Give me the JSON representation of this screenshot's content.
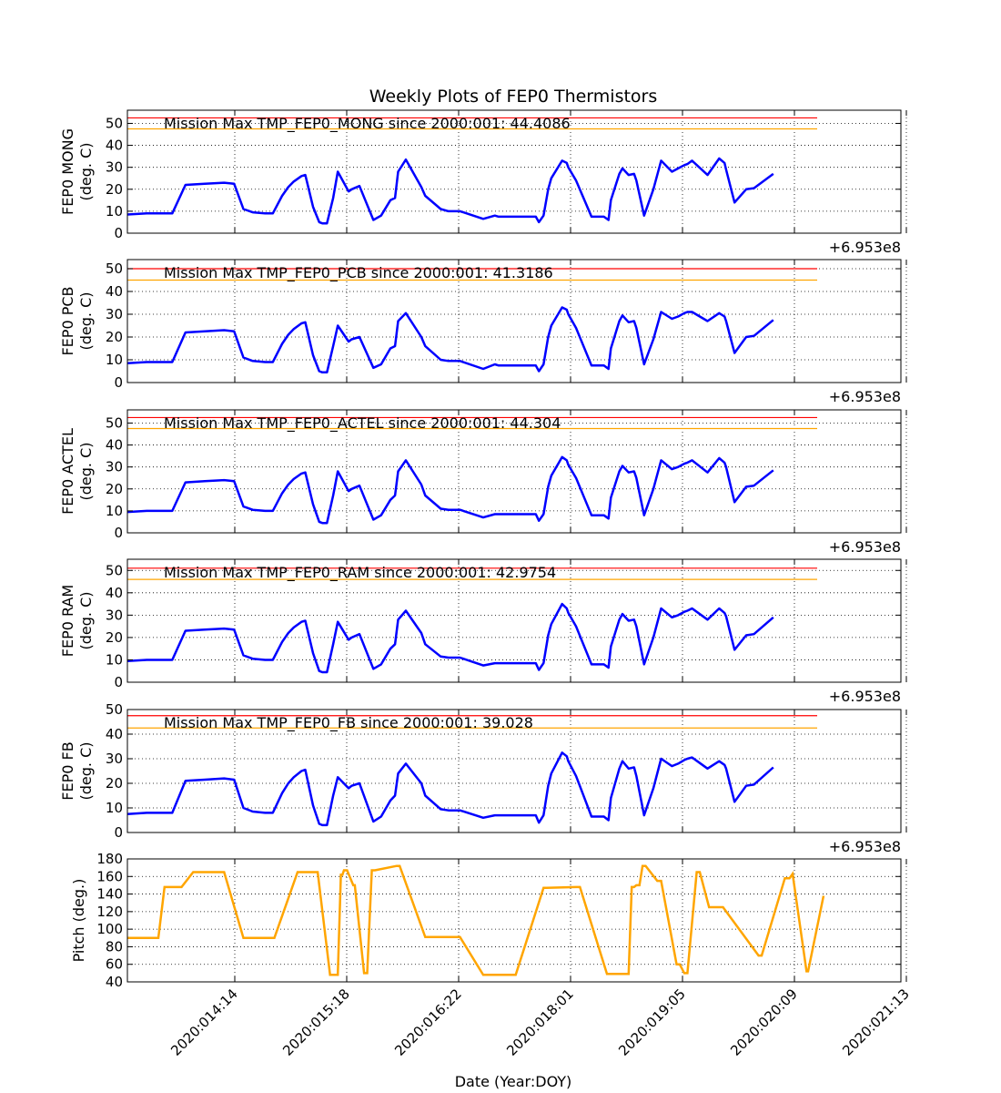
{
  "chart_data": {
    "type": "line",
    "title": "Weekly Plots of FEP0 Thermistors",
    "xlabel": "Date (Year:DOY)",
    "x_tick_labels": [
      "2020:014:14",
      "2020:015:18",
      "2020:016:22",
      "2020:018:01",
      "2020:019:05",
      "2020:020:09",
      "2020:021:13"
    ],
    "grid": true,
    "offset_label": "+6.953e8",
    "colors": {
      "series": "#0000ff",
      "pitch": "#ffa500",
      "red_limit": "#ff0000",
      "yellow_limit": "#ffa500"
    },
    "panels": [
      {
        "ylabel_line1": "FEP0 MONG",
        "ylabel_line2": "(deg. C)",
        "ylim": [
          0,
          56
        ],
        "yticks": [
          0,
          10,
          20,
          30,
          40,
          50
        ],
        "annotation": "Mission Max TMP_FEP0_MONG since 2000:001: 44.4086",
        "red_limit": 52.5,
        "yellow_limit": 47.5,
        "x": [
          0,
          0.25,
          0.5,
          0.58,
          0.75,
          1.0,
          1.25,
          1.38,
          1.5,
          1.62,
          1.78,
          1.88,
          2.0,
          2.08,
          2.15,
          2.25,
          2.3,
          2.4,
          2.48,
          2.52,
          2.58,
          2.66,
          2.72,
          2.86,
          2.9,
          3.0,
          3.18,
          3.28,
          3.4,
          3.46,
          3.5,
          3.6,
          3.8,
          3.85,
          4.05,
          4.15,
          4.2,
          4.3,
          4.6,
          4.75,
          4.8,
          4.95,
          5.1,
          5.2,
          5.28,
          5.32,
          5.38,
          5.44,
          5.48,
          5.62,
          5.68,
          5.7,
          5.8,
          6.0,
          6.07,
          6.1,
          6.16,
          6.22,
          6.25,
          6.36,
          6.4,
          6.48,
          6.55,
          6.58,
          6.68,
          6.8,
          6.9,
          7.04,
          7.12,
          7.2,
          7.24,
          7.3,
          7.5,
          7.65,
          7.72,
          7.74,
          7.85,
          8.0,
          8.1,
          8.35
        ],
        "y": [
          8.5,
          9,
          9,
          9,
          22,
          22.5,
          23,
          22.5,
          11,
          9.5,
          9,
          9,
          17,
          21,
          23.5,
          26,
          26.5,
          12,
          5,
          4.5,
          4.5,
          16,
          28,
          19,
          20,
          21.5,
          6,
          8,
          15,
          16,
          28,
          33.5,
          21,
          17,
          11,
          10,
          10,
          10,
          6.5,
          8,
          7.5,
          7.5,
          7.5,
          7.5,
          7.5,
          5,
          8,
          20,
          25,
          33,
          32,
          30,
          24,
          7.5,
          7.5,
          7.5,
          7.5,
          6,
          15,
          27,
          29.5,
          26.5,
          27,
          24,
          8,
          20,
          33,
          28,
          29.5,
          31,
          31.5,
          33,
          26.5,
          34,
          32,
          29,
          14,
          20,
          20.5,
          27
        ]
      },
      {
        "ylabel_line1": "FEP0 PCB",
        "ylabel_line2": "(deg. C)",
        "ylim": [
          0,
          54
        ],
        "yticks": [
          0,
          10,
          20,
          30,
          40,
          50
        ],
        "annotation": "Mission Max TMP_FEP0_PCB since 2000:001: 41.3186",
        "red_limit": 50,
        "yellow_limit": 45,
        "x": [
          0,
          0.25,
          0.5,
          0.58,
          0.75,
          1.0,
          1.25,
          1.38,
          1.5,
          1.62,
          1.78,
          1.88,
          2.0,
          2.08,
          2.15,
          2.25,
          2.3,
          2.4,
          2.48,
          2.52,
          2.58,
          2.66,
          2.72,
          2.86,
          2.9,
          3.0,
          3.18,
          3.28,
          3.4,
          3.46,
          3.5,
          3.6,
          3.8,
          3.85,
          4.05,
          4.15,
          4.2,
          4.3,
          4.6,
          4.75,
          4.8,
          4.95,
          5.1,
          5.2,
          5.28,
          5.32,
          5.38,
          5.44,
          5.48,
          5.62,
          5.68,
          5.7,
          5.8,
          6.0,
          6.07,
          6.1,
          6.16,
          6.22,
          6.25,
          6.36,
          6.4,
          6.48,
          6.55,
          6.58,
          6.68,
          6.8,
          6.9,
          7.04,
          7.12,
          7.2,
          7.24,
          7.3,
          7.5,
          7.65,
          7.72,
          7.74,
          7.85,
          8.0,
          8.1,
          8.35
        ],
        "y": [
          8.5,
          9,
          9,
          9,
          22,
          22.5,
          23,
          22.5,
          11,
          9.5,
          9,
          9,
          17,
          21,
          23.5,
          26,
          26.5,
          12,
          5,
          4.5,
          4.5,
          16,
          25,
          18,
          19,
          20,
          6.5,
          8,
          15,
          16,
          27,
          30.5,
          20,
          16,
          10,
          9.5,
          9.5,
          9.5,
          6,
          8,
          7.5,
          7.5,
          7.5,
          7.5,
          7.5,
          5,
          8,
          20,
          25,
          33,
          32,
          30,
          24,
          7.5,
          7.5,
          7.5,
          7.5,
          6,
          15,
          27,
          29.5,
          26.5,
          27,
          24,
          8,
          19,
          31,
          28,
          29,
          30.5,
          31,
          31,
          27,
          30.5,
          29,
          27,
          13,
          20,
          20.5,
          27.5
        ]
      },
      {
        "ylabel_line1": "FEP0 ACTEL",
        "ylabel_line2": "(deg. C)",
        "ylim": [
          0,
          56
        ],
        "yticks": [
          0,
          10,
          20,
          30,
          40,
          50
        ],
        "annotation": "Mission Max TMP_FEP0_ACTEL since 2000:001: 44.304",
        "red_limit": 52.5,
        "yellow_limit": 47.5,
        "x": [
          0,
          0.25,
          0.5,
          0.58,
          0.75,
          1.0,
          1.25,
          1.38,
          1.5,
          1.62,
          1.78,
          1.88,
          2.0,
          2.08,
          2.15,
          2.25,
          2.3,
          2.4,
          2.48,
          2.52,
          2.58,
          2.66,
          2.72,
          2.86,
          2.9,
          3.0,
          3.18,
          3.28,
          3.4,
          3.46,
          3.5,
          3.6,
          3.8,
          3.85,
          4.05,
          4.15,
          4.2,
          4.3,
          4.6,
          4.75,
          4.8,
          4.95,
          5.1,
          5.2,
          5.28,
          5.32,
          5.38,
          5.44,
          5.48,
          5.62,
          5.68,
          5.7,
          5.8,
          6.0,
          6.07,
          6.1,
          6.16,
          6.22,
          6.25,
          6.36,
          6.4,
          6.48,
          6.55,
          6.58,
          6.68,
          6.8,
          6.9,
          7.04,
          7.12,
          7.2,
          7.24,
          7.3,
          7.5,
          7.65,
          7.72,
          7.74,
          7.85,
          8.0,
          8.1,
          8.35
        ],
        "y": [
          9.5,
          10,
          10,
          10,
          23,
          23.5,
          24,
          23.5,
          12,
          10.5,
          10,
          10,
          18,
          22,
          24.5,
          27,
          27.5,
          13,
          5,
          4.5,
          4.5,
          17,
          28,
          19,
          20,
          21.5,
          6,
          8,
          15,
          17,
          28,
          33,
          22,
          17,
          11,
          10.5,
          10.5,
          10.5,
          7,
          8.5,
          8.5,
          8.5,
          8.5,
          8.5,
          8.5,
          5.5,
          8.5,
          21,
          26,
          34.5,
          33,
          31,
          25,
          8,
          8,
          8,
          8,
          6.5,
          16,
          28,
          30.5,
          27.5,
          28,
          25,
          8,
          20,
          33,
          29,
          30,
          31.5,
          32,
          33,
          27.5,
          34,
          32,
          30,
          14,
          21,
          21.5,
          28.5
        ]
      },
      {
        "ylabel_line1": "FEP0 RAM",
        "ylabel_line2": "(deg. C)",
        "ylim": [
          0,
          55
        ],
        "yticks": [
          0,
          10,
          20,
          30,
          40,
          50
        ],
        "annotation": "Mission Max TMP_FEP0_RAM since 2000:001: 42.9754",
        "red_limit": 51,
        "yellow_limit": 46,
        "x": [
          0,
          0.25,
          0.5,
          0.58,
          0.75,
          1.0,
          1.25,
          1.38,
          1.5,
          1.62,
          1.78,
          1.88,
          2.0,
          2.08,
          2.15,
          2.25,
          2.3,
          2.4,
          2.48,
          2.52,
          2.58,
          2.66,
          2.72,
          2.86,
          2.9,
          3.0,
          3.18,
          3.28,
          3.4,
          3.46,
          3.5,
          3.6,
          3.8,
          3.85,
          4.05,
          4.15,
          4.2,
          4.3,
          4.6,
          4.75,
          4.8,
          4.95,
          5.1,
          5.2,
          5.28,
          5.32,
          5.38,
          5.44,
          5.48,
          5.62,
          5.68,
          5.7,
          5.8,
          6.0,
          6.07,
          6.1,
          6.16,
          6.22,
          6.25,
          6.36,
          6.4,
          6.48,
          6.55,
          6.58,
          6.68,
          6.8,
          6.9,
          7.04,
          7.12,
          7.2,
          7.24,
          7.3,
          7.5,
          7.65,
          7.72,
          7.74,
          7.85,
          8.0,
          8.1,
          8.35
        ],
        "y": [
          9.5,
          10,
          10,
          10,
          23,
          23.5,
          24,
          23.5,
          12,
          10.5,
          10,
          10,
          18,
          22,
          24.5,
          27,
          27.5,
          13,
          5,
          4.5,
          4.5,
          17,
          27,
          19,
          20,
          21.5,
          6,
          8,
          15,
          17,
          28,
          32,
          22,
          17,
          11.5,
          11,
          11,
          11,
          7.5,
          8.5,
          8.5,
          8.5,
          8.5,
          8.5,
          8.5,
          5.5,
          8.5,
          21,
          26,
          35,
          33,
          31,
          25,
          8,
          8,
          8,
          8,
          6.5,
          16,
          28,
          30.5,
          27.5,
          28,
          25,
          8,
          20,
          33,
          29,
          30,
          31.5,
          32,
          33,
          28,
          33,
          31,
          29.5,
          14.5,
          21,
          21.5,
          29
        ]
      },
      {
        "ylabel_line1": "FEP0 FB",
        "ylabel_line2": "(deg. C)",
        "ylim": [
          0,
          50
        ],
        "yticks": [
          0,
          10,
          20,
          30,
          40,
          50
        ],
        "annotation": "Mission Max TMP_FEP0_FB since 2000:001: 39.028",
        "red_limit": 47.5,
        "yellow_limit": 42.5,
        "x": [
          0,
          0.25,
          0.5,
          0.58,
          0.75,
          1.0,
          1.25,
          1.38,
          1.5,
          1.62,
          1.78,
          1.88,
          2.0,
          2.08,
          2.15,
          2.25,
          2.3,
          2.4,
          2.48,
          2.52,
          2.58,
          2.66,
          2.72,
          2.86,
          2.9,
          3.0,
          3.18,
          3.28,
          3.4,
          3.46,
          3.5,
          3.6,
          3.8,
          3.85,
          4.05,
          4.15,
          4.2,
          4.3,
          4.6,
          4.75,
          4.8,
          4.95,
          5.1,
          5.2,
          5.28,
          5.32,
          5.38,
          5.44,
          5.48,
          5.62,
          5.68,
          5.7,
          5.8,
          6.0,
          6.07,
          6.1,
          6.16,
          6.22,
          6.25,
          6.36,
          6.4,
          6.48,
          6.55,
          6.58,
          6.68,
          6.8,
          6.9,
          7.04,
          7.12,
          7.2,
          7.24,
          7.3,
          7.5,
          7.65,
          7.72,
          7.74,
          7.85,
          8.0,
          8.1,
          8.35
        ],
        "y": [
          7.5,
          8,
          8,
          8,
          21,
          21.5,
          22,
          21.5,
          10,
          8.5,
          8,
          8,
          16,
          20,
          22.5,
          25,
          25.5,
          11,
          3.5,
          3,
          3,
          15,
          22.5,
          18,
          19,
          20,
          4.5,
          6.5,
          13,
          15,
          24,
          28,
          20,
          15,
          9.5,
          9,
          9,
          9,
          6,
          7,
          7,
          7,
          7,
          7,
          7,
          4,
          7,
          19,
          24,
          32.5,
          31,
          29,
          23,
          6.5,
          6.5,
          6.5,
          6.5,
          5,
          14,
          26,
          29,
          26,
          26.5,
          23,
          7,
          18,
          30,
          27,
          28,
          29.5,
          30,
          30.5,
          26,
          29,
          27.5,
          26,
          12.5,
          19,
          19.5,
          26.5
        ]
      },
      {
        "ylabel_line1": "Pitch (deg.)",
        "ylabel_line2": "",
        "ylim": [
          40,
          180
        ],
        "yticks": [
          40,
          60,
          80,
          100,
          120,
          140,
          160,
          180
        ],
        "annotation": "",
        "step": true,
        "x": [
          0,
          0.35,
          0.4,
          0.48,
          0.5,
          0.66,
          0.7,
          0.85,
          0.88,
          1.2,
          1.25,
          1.5,
          1.54,
          1.85,
          1.9,
          2.2,
          2.25,
          2.42,
          2.46,
          2.62,
          2.64,
          2.68,
          2.72,
          2.76,
          2.78,
          2.8,
          2.84,
          2.92,
          2.94,
          3.06,
          3.1,
          3.16,
          3.2,
          3.48,
          3.52,
          3.85,
          3.9,
          4.25,
          4.3,
          4.6,
          4.65,
          4.98,
          5.02,
          5.38,
          5.42,
          5.8,
          5.85,
          6.2,
          6.24,
          6.45,
          6.48,
          6.52,
          6.55,
          6.58,
          6.62,
          6.66,
          6.7,
          6.85,
          6.9,
          7.1,
          7.14,
          7.2,
          7.24,
          7.36,
          7.4,
          7.52,
          7.56,
          7.62,
          7.66,
          7.7,
          8.16,
          8.2,
          8.5,
          8.56,
          8.6,
          8.78,
          8.8,
          9.0
        ],
        "y": [
          90,
          90,
          90,
          148,
          148,
          148,
          148,
          165,
          165,
          165,
          165,
          90,
          90,
          90,
          90,
          165,
          165,
          165,
          165,
          48,
          48,
          48,
          48,
          162,
          162,
          167,
          167,
          150,
          150,
          50,
          50,
          167,
          167,
          172,
          172,
          91,
          91,
          91,
          91,
          48,
          48,
          48,
          48,
          147,
          147,
          148,
          148,
          49,
          49,
          49,
          49,
          148,
          148,
          150,
          150,
          172,
          172,
          155,
          155,
          60,
          60,
          50,
          50,
          165,
          165,
          125,
          125,
          125,
          125,
          125,
          70,
          70,
          158,
          158,
          163,
          52,
          52,
          138
        ],
        "y_note": "pitch trace"
      }
    ]
  }
}
